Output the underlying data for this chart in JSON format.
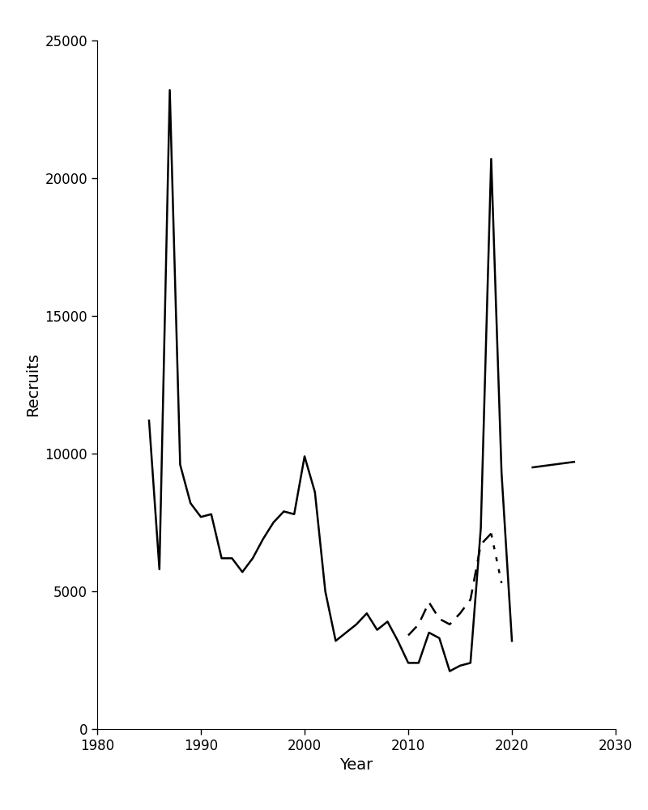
{
  "solid_line": {
    "years": [
      1985,
      1986,
      1987,
      1988,
      1989,
      1990,
      1991,
      1992,
      1993,
      1994,
      1995,
      1996,
      1997,
      1998,
      1999,
      2000,
      2001,
      2002,
      2003,
      2004,
      2005,
      2006,
      2007,
      2008,
      2009,
      2010,
      2011,
      2012,
      2013,
      2014,
      2015,
      2016,
      2017,
      2018,
      2019,
      2020,
      2021,
      2022,
      2023,
      2024,
      2025
    ],
    "values": [
      11200,
      5800,
      23200,
      9600,
      8200,
      7700,
      7800,
      6200,
      6200,
      5700,
      6200,
      6900,
      7500,
      7900,
      7800,
      9900,
      8600,
      5000,
      3200,
      3500,
      3800,
      4200,
      3600,
      3900,
      3200,
      2400,
      2400,
      3500,
      3300,
      2100,
      2300,
      2400,
      7300,
      20700,
      9300,
      3200,
      null,
      null,
      null,
      null,
      null
    ]
  },
  "dashed_line": {
    "years": [
      2010,
      2011,
      2012,
      2013,
      2014,
      2015,
      2016,
      2017,
      2018
    ],
    "values": [
      3400,
      3800,
      4600,
      4000,
      3800,
      4200,
      4700,
      6700,
      7100
    ]
  },
  "dotted_tail": {
    "years": [
      2018,
      2019
    ],
    "values": [
      7100,
      5300
    ]
  },
  "solid_line_after": {
    "years": [
      2022,
      2026
    ],
    "values": [
      9500,
      9700
    ]
  },
  "solid_line_color": "#000000",
  "dashed_line_color": "#000000",
  "background_color": "#ffffff",
  "xlabel": "Year",
  "ylabel": "Recruits",
  "xlim": [
    1980,
    2030
  ],
  "ylim": [
    0,
    25000
  ],
  "yticks": [
    0,
    5000,
    10000,
    15000,
    20000,
    25000
  ],
  "xticks": [
    1980,
    1990,
    2000,
    2010,
    2020,
    2030
  ],
  "linewidth": 1.8,
  "axis_fontsize": 14,
  "tick_fontsize": 12
}
